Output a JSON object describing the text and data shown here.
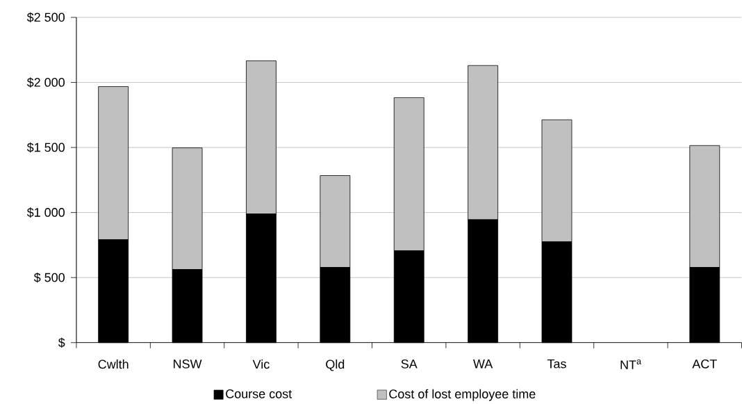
{
  "chart_data": {
    "type": "bar",
    "stacked": true,
    "categories": [
      "Cwlth",
      "NSW",
      "Vic",
      "Qld",
      "SA",
      "WA",
      "Tas",
      "NT$^{a}$",
      "ACT"
    ],
    "series": [
      {
        "name": "Course cost",
        "color": "#000000",
        "values": [
          791,
          562,
          989,
          578,
          706,
          945,
          775,
          null,
          578
        ]
      },
      {
        "name": "Cost of lost employee time",
        "color": "#c0c0c0",
        "values": [
          1177,
          935,
          1177,
          706,
          1177,
          1185,
          938,
          null,
          937
        ]
      }
    ],
    "ylim": [
      0,
      2500
    ],
    "yticks": [
      {
        "value": 0,
        "label": "$"
      },
      {
        "value": 500,
        "label": "$ 500"
      },
      {
        "value": 1000,
        "label": "$1 000"
      },
      {
        "value": 1500,
        "label": "$1 500"
      },
      {
        "value": 2000,
        "label": "$2 000"
      },
      {
        "value": 2500,
        "label": "$2 500"
      }
    ],
    "grid": "y",
    "legend": "bottom"
  }
}
